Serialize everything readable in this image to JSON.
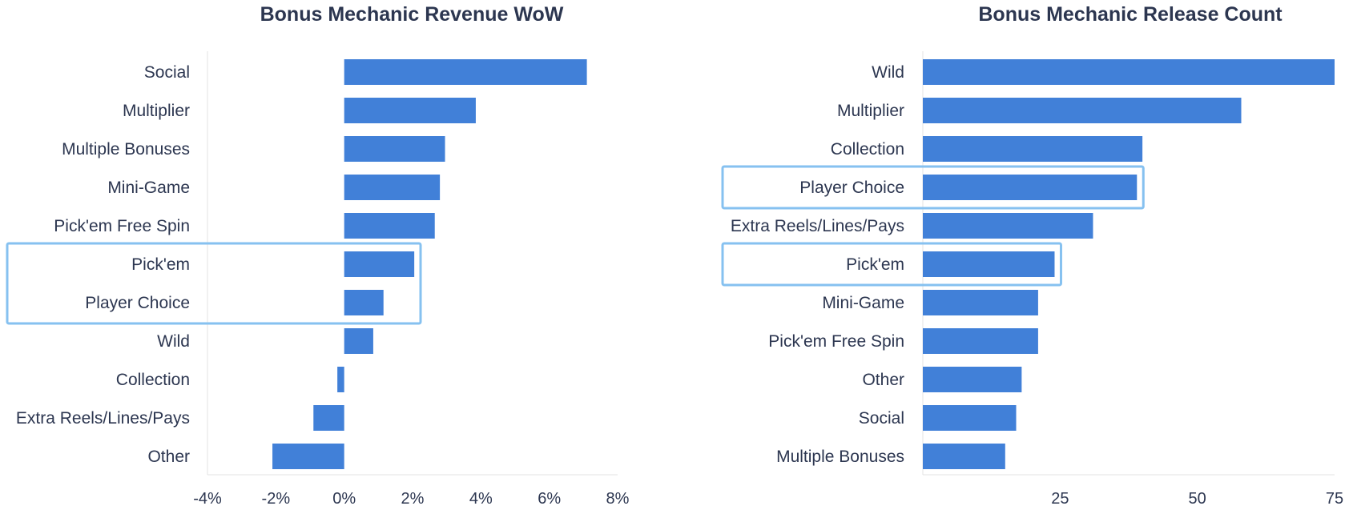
{
  "colors": {
    "bar": "#4180d8",
    "highlight": "#86c1f0",
    "text": "#2c3650",
    "axis": "#e3e3e3"
  },
  "chart_data": [
    {
      "type": "bar",
      "orientation": "horizontal",
      "title": "Bonus Mechanic Revenue WoW",
      "categories": [
        "Social",
        "Multiplier",
        "Multiple Bonuses",
        "Mini-Game",
        "Pick'em Free Spin",
        "Pick'em",
        "Player Choice",
        "Wild",
        "Collection",
        "Extra Reels/Lines/Pays",
        "Other"
      ],
      "values": [
        7.1,
        3.85,
        2.95,
        2.8,
        2.65,
        2.05,
        1.15,
        0.85,
        -0.2,
        -0.9,
        -2.1
      ],
      "xlim": [
        -4,
        8
      ],
      "xticks": [
        -4,
        -2,
        0,
        2,
        4,
        6,
        8
      ],
      "xtick_labels": [
        "-4%",
        "-2%",
        "0%",
        "2%",
        "4%",
        "6%",
        "8%"
      ],
      "highlighted_groups": [
        [
          "Pick'em",
          "Player Choice"
        ]
      ],
      "grid": false
    },
    {
      "type": "bar",
      "orientation": "horizontal",
      "title": "Bonus Mechanic Release Count",
      "categories": [
        "Wild",
        "Multiplier",
        "Collection",
        "Player Choice",
        "Extra Reels/Lines/Pays",
        "Pick'em",
        "Mini-Game",
        "Pick'em Free Spin",
        "Other",
        "Social",
        "Multiple Bonuses"
      ],
      "values": [
        75,
        58,
        40,
        39,
        31,
        24,
        21,
        21,
        18,
        17,
        15
      ],
      "xlim": [
        0,
        75
      ],
      "xticks": [
        25,
        50,
        75
      ],
      "xtick_labels": [
        "25",
        "50",
        "75"
      ],
      "highlighted_groups": [
        [
          "Player Choice"
        ],
        [
          "Pick'em"
        ]
      ],
      "grid": false
    }
  ]
}
